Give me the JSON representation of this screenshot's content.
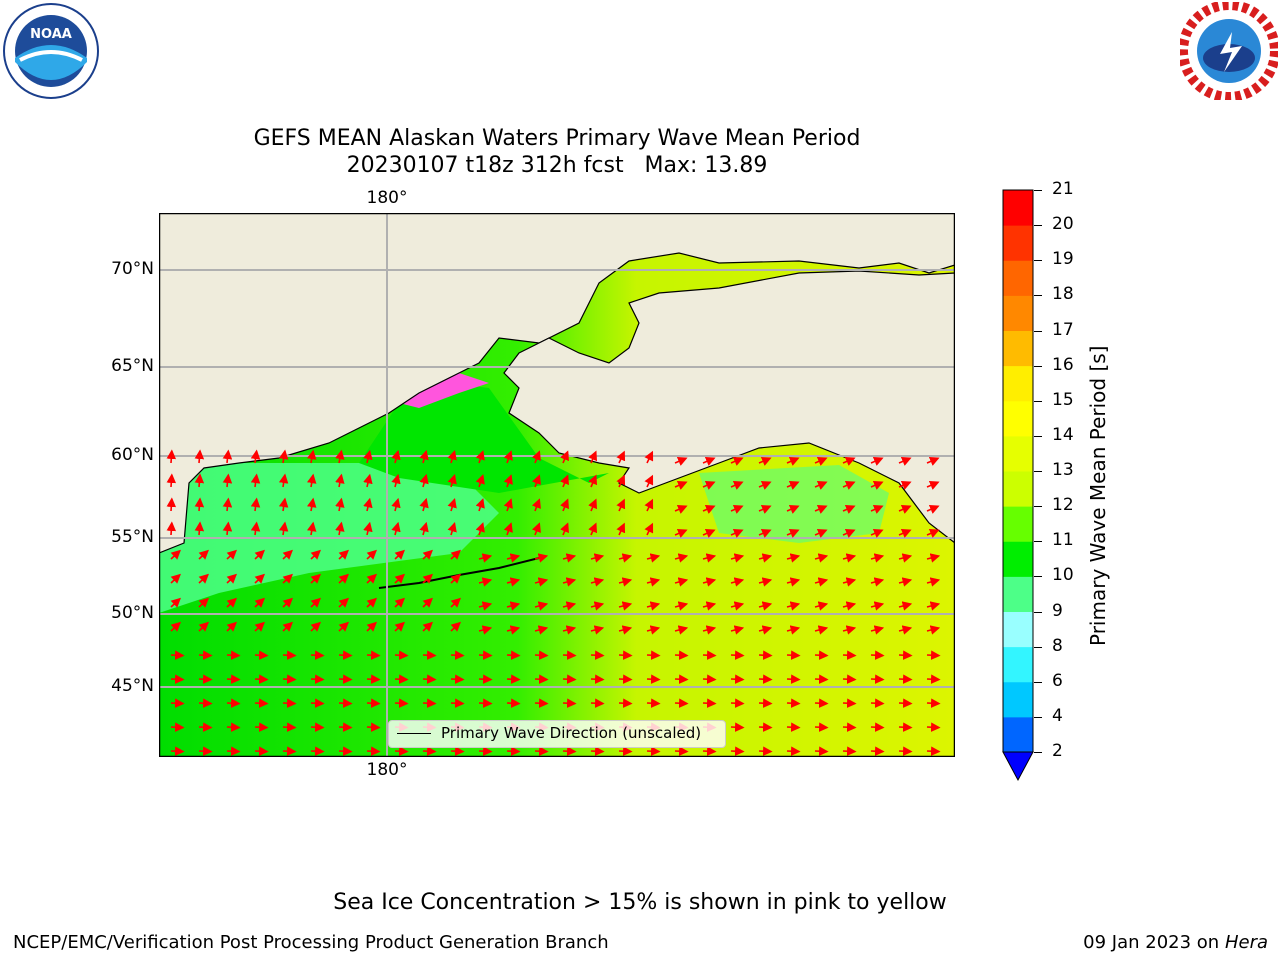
{
  "header": {
    "title": "GEFS MEAN Alaskan Waters Primary Wave Mean Period",
    "subtitle": "20230107 t18z 312h fcst   Max: 13.89"
  },
  "logos": {
    "left_icon": "noaa-logo-icon",
    "right_icon": "nws-logo-icon"
  },
  "map": {
    "lat_labels": [
      "70°N",
      "65°N",
      "60°N",
      "55°N",
      "50°N",
      "45°N"
    ],
    "lon_label_top": "180°",
    "lon_label_bottom": "180°",
    "legend_label": "Primary Wave Direction (unscaled)",
    "arrow_icon": "wave-direction-arrow-icon",
    "colors": {
      "land": "#efecdc",
      "arrow": "#ff0000",
      "grid": "#b0b0b0",
      "ice": "#ff55dd"
    }
  },
  "colorbar": {
    "label": "Primary Wave Mean Period [s]",
    "ticks": [
      "2",
      "4",
      "6",
      "8",
      "9",
      "10",
      "11",
      "12",
      "13",
      "14",
      "15",
      "16",
      "17",
      "18",
      "19",
      "20",
      "21"
    ],
    "colors": [
      "#0066ff",
      "#00c8ff",
      "#33f5ff",
      "#99ffff",
      "#4dff88",
      "#00ee00",
      "#66ff00",
      "#ccff00",
      "#e6ff00",
      "#ffff00",
      "#ffee00",
      "#ffbb00",
      "#ff8800",
      "#ff6600",
      "#ff3300",
      "#ff0000"
    ],
    "under_color": "#0000ff"
  },
  "footer": {
    "note": "Sea Ice Concentration > 15% is shown in pink to yellow",
    "left": "NCEP/EMC/Verification Post Processing Product Generation Branch",
    "date": "09 Jan 2023",
    "on": "on",
    "system": "Hera"
  }
}
